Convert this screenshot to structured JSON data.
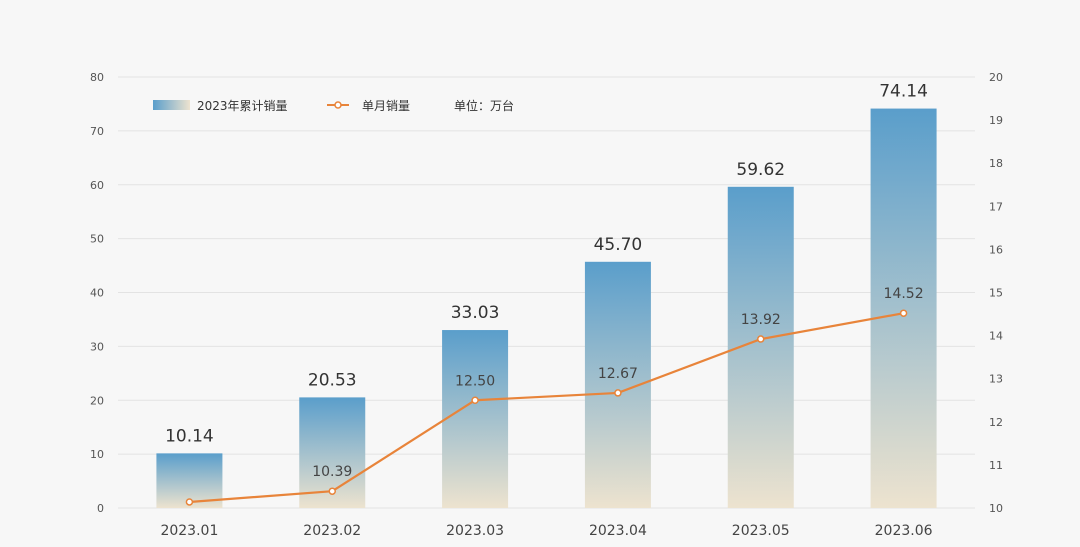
{
  "chart_data": {
    "type": "bar",
    "categories": [
      "2023.01",
      "2023.02",
      "2023.03",
      "2023.04",
      "2023.05",
      "2023.06"
    ],
    "series": [
      {
        "name": "2023年累计销量",
        "type": "bar",
        "axis": "left",
        "values": [
          10.14,
          20.53,
          33.03,
          45.7,
          59.62,
          74.14
        ],
        "labels": [
          "10.14",
          "20.53",
          "33.03",
          "45.70",
          "59.62",
          "74.14"
        ]
      },
      {
        "name": "单月销量",
        "type": "line",
        "axis": "right",
        "values": [
          10.14,
          10.39,
          12.5,
          12.67,
          13.92,
          14.52
        ],
        "labels": [
          "",
          "10.39",
          "12.50",
          "12.67",
          "13.92",
          "14.52"
        ]
      }
    ],
    "unit_note": "单位：万台",
    "y_left": {
      "min": 0,
      "max": 80,
      "ticks": [
        0,
        10,
        20,
        30,
        40,
        50,
        60,
        70,
        80
      ]
    },
    "y_right": {
      "min": 10,
      "max": 20,
      "ticks": [
        10,
        11,
        12,
        13,
        14,
        15,
        16,
        17,
        18,
        19,
        20
      ]
    },
    "grid": true,
    "legend_position": "top-left",
    "colors": {
      "bar_top": "#5a9ecb",
      "bar_bottom": "#ede3cf",
      "line": "#e8843a",
      "marker_fill": "#ffffff"
    }
  }
}
